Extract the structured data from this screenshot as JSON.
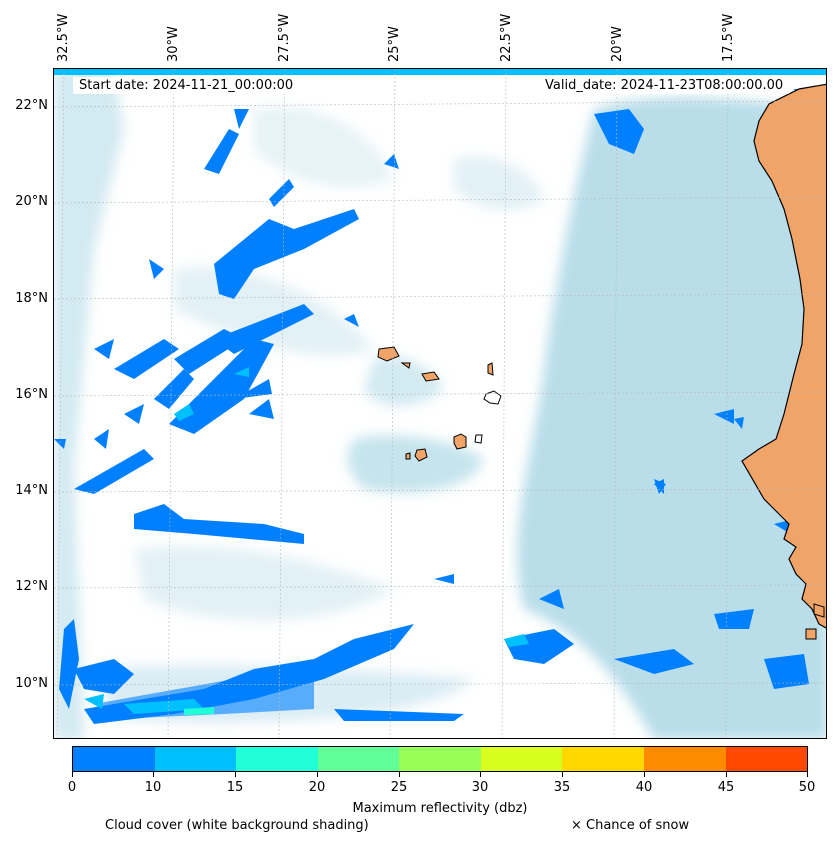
{
  "header": {
    "start_date": "Start date: 2024-11-21_00:00:00",
    "valid_date": "Valid_date: 2024-11-23T08:00:00.00"
  },
  "axes": {
    "lon_labels": [
      "32.5°W",
      "30°W",
      "27.5°W",
      "25°W",
      "22.5°W",
      "20°W",
      "17.5°W"
    ],
    "lat_labels": [
      "22°N",
      "20°N",
      "18°N",
      "16°N",
      "14°N",
      "12°N",
      "10°N"
    ]
  },
  "colorbar": {
    "label": "Maximum reflectivity (dbz)",
    "ticks": [
      "0",
      "10",
      "15",
      "20",
      "25",
      "30",
      "35",
      "40",
      "45",
      "50"
    ],
    "colors": [
      "#0080ff",
      "#00c0ff",
      "#20ffd8",
      "#60ff98",
      "#98ff58",
      "#d8ff20",
      "#ffd800",
      "#ff8c00",
      "#ff4800"
    ]
  },
  "legend": {
    "cloud_cover": "Cloud cover (white background shading)",
    "snow": "× Chance of snow"
  },
  "colors": {
    "land": "#f0a468",
    "cloud": "#add8e6",
    "reflectivity_low": "#0080ff",
    "reflectivity_mid": "#00c0ff",
    "reflectivity_high": "#20ffd8"
  }
}
